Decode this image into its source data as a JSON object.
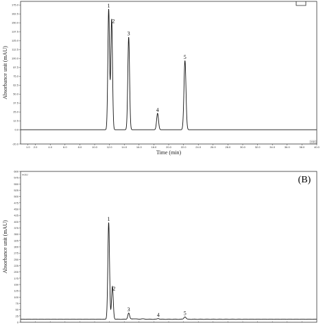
{
  "chart_data": [
    {
      "type": "line",
      "panel_label": "",
      "xlabel": "Time (min)",
      "ylabel": "Absorbance unit (mAU)",
      "unit_tag": "",
      "x_end_tag": "min",
      "xlim": [
        0,
        40
      ],
      "ylim": [
        -20,
        180
      ],
      "x_ticks": [
        "1.0",
        "2.0",
        "4.0",
        "6.0",
        "8.0",
        "10.0",
        "12.0",
        "14.0",
        "16.0",
        "18.0",
        "20.0",
        "22.0",
        "24.0",
        "26.0",
        "28.0",
        "30.0",
        "32.0",
        "34.0",
        "36.0",
        "38.0",
        "40.0"
      ],
      "y_ticks": [
        "-20.0",
        "0.0",
        "12.5",
        "25.0",
        "37.5",
        "50.0",
        "62.5",
        "75.0",
        "87.5",
        "100.0",
        "112.5",
        "125.0",
        "137.5",
        "150.0",
        "162.5",
        "175.0"
      ],
      "baseline": 0,
      "peaks": [
        {
          "label": "1",
          "time": 11.9,
          "height": 169
        },
        {
          "label": "2",
          "time": 12.3,
          "height": 155
        },
        {
          "label": "3",
          "time": 14.6,
          "height": 130
        },
        {
          "label": "4",
          "time": 18.5,
          "height": 23
        },
        {
          "label": "5",
          "time": 22.2,
          "height": 97
        }
      ],
      "legend": "none",
      "grid": false
    },
    {
      "type": "line",
      "panel_label": "(B)",
      "xlabel": "",
      "ylabel": "Absorbance unit (mAU)",
      "unit_tag": "mAU",
      "x_end_tag": "",
      "xlim": [
        0,
        40
      ],
      "ylim": [
        0,
        600
      ],
      "x_ticks": [],
      "y_ticks": [
        "0",
        "25",
        "50",
        "75",
        "100",
        "125",
        "150",
        "175",
        "200",
        "225",
        "250",
        "275",
        "300",
        "325",
        "350",
        "375",
        "400",
        "425",
        "450",
        "475",
        "500",
        "525",
        "550",
        "575",
        "600"
      ],
      "baseline": 12,
      "peaks": [
        {
          "label": "1",
          "time": 11.9,
          "height": 385
        },
        {
          "label": "2",
          "time": 12.4,
          "height": 130
        },
        {
          "label": "3",
          "time": 14.6,
          "height": 25
        },
        {
          "label": "4",
          "time": 18.6,
          "height": 3
        },
        {
          "label": "5",
          "time": 22.2,
          "height": 10
        }
      ],
      "legend": "none",
      "grid": false
    }
  ]
}
